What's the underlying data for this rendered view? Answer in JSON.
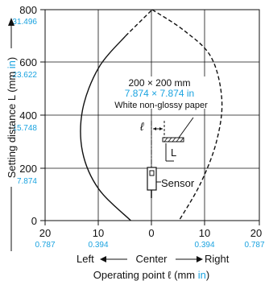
{
  "chart_data": {
    "type": "diagram",
    "y_axis": {
      "label_main": "Setting distance L (mm ",
      "label_unit": "in",
      "label_close": ")",
      "ticks": [
        {
          "mm": "0",
          "in": ""
        },
        {
          "mm": "200",
          "in": "7.874"
        },
        {
          "mm": "400",
          "in": "15.748"
        },
        {
          "mm": "600",
          "in": "23.622"
        },
        {
          "mm": "800",
          "in": "31.496"
        }
      ],
      "ylim": [
        0,
        800
      ]
    },
    "x_axis": {
      "label_main": "Operating point ℓ (mm ",
      "label_unit": "in",
      "label_close": ")",
      "direction_left": "Left",
      "direction_center": "Center",
      "direction_right": "Right",
      "ticks": [
        {
          "mm": "20",
          "in": "0.787",
          "value": -20
        },
        {
          "mm": "10",
          "in": "0.394",
          "value": -10
        },
        {
          "mm": "0",
          "in": "",
          "value": 0
        },
        {
          "mm": "10",
          "in": "0.394",
          "value": 10
        },
        {
          "mm": "20",
          "in": "0.787",
          "value": 20
        }
      ],
      "xlim": [
        -20,
        20
      ]
    },
    "annotations": {
      "target_size_mm": "200 × 200 mm",
      "target_size_in": "7.874 × 7.874 in",
      "target_material": "White non-glossy paper",
      "ell_symbol": "ℓ",
      "L_symbol": "L",
      "sensor_label": "Sensor"
    },
    "curves": {
      "solid_outer": {
        "style": "solid",
        "points": [
          [
            -4,
            0
          ],
          [
            -10,
            120
          ],
          [
            -13,
            260
          ],
          [
            -13,
            420
          ],
          [
            -10,
            580
          ],
          [
            -5,
            700
          ]
        ]
      },
      "dashed_left": {
        "style": "dashed",
        "points": [
          [
            -5,
            700
          ],
          [
            -2,
            760
          ],
          [
            0,
            800
          ]
        ]
      },
      "dashed_right": {
        "style": "dashed",
        "points": [
          [
            0,
            800
          ],
          [
            6,
            720
          ],
          [
            11,
            620
          ],
          [
            13,
            460
          ],
          [
            12,
            300
          ],
          [
            9,
            140
          ],
          [
            5,
            0
          ]
        ]
      }
    }
  }
}
